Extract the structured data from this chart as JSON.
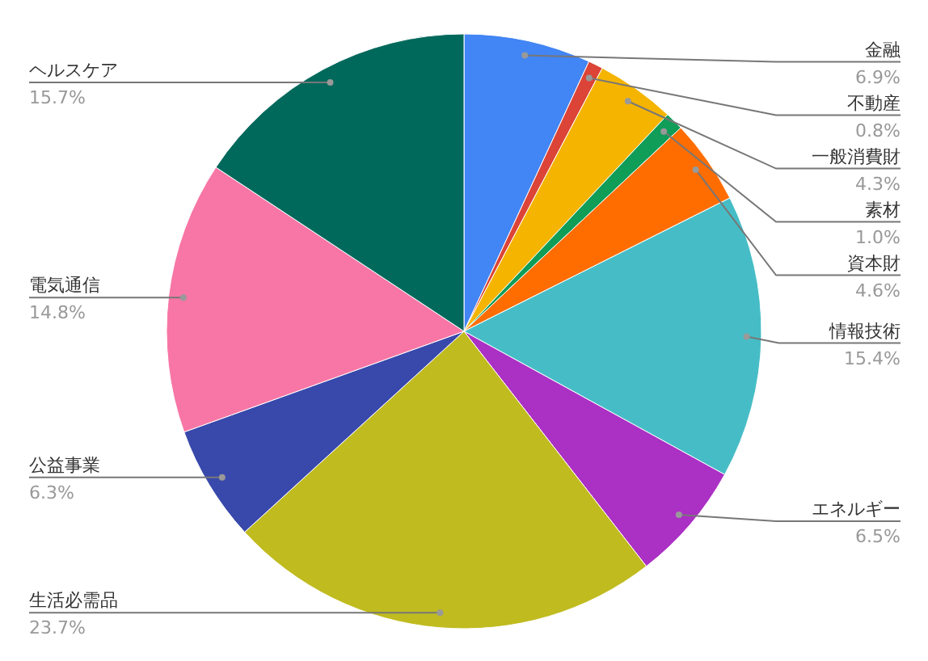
{
  "chart_data": {
    "type": "pie",
    "categories": [
      "金融",
      "不動産",
      "一般消費財",
      "素材",
      "資本財",
      "情報技術",
      "エネルギー",
      "生活必需品",
      "公益事業",
      "電気通信",
      "ヘルスケア"
    ],
    "values": [
      6.9,
      0.8,
      4.3,
      1.0,
      4.6,
      15.4,
      6.5,
      23.7,
      6.3,
      14.8,
      15.7
    ],
    "colors": [
      "#4285f4",
      "#db4437",
      "#f4b400",
      "#0f9d58",
      "#ff6d00",
      "#46bdc6",
      "#ab30c4",
      "#c0bb1f",
      "#3949ab",
      "#f776a5",
      "#00695c"
    ],
    "value_labels": [
      "6.9%",
      "0.8%",
      "4.3%",
      "1.0%",
      "4.6%",
      "15.4%",
      "6.5%",
      "23.7%",
      "6.3%",
      "14.8%",
      "15.7%"
    ]
  }
}
